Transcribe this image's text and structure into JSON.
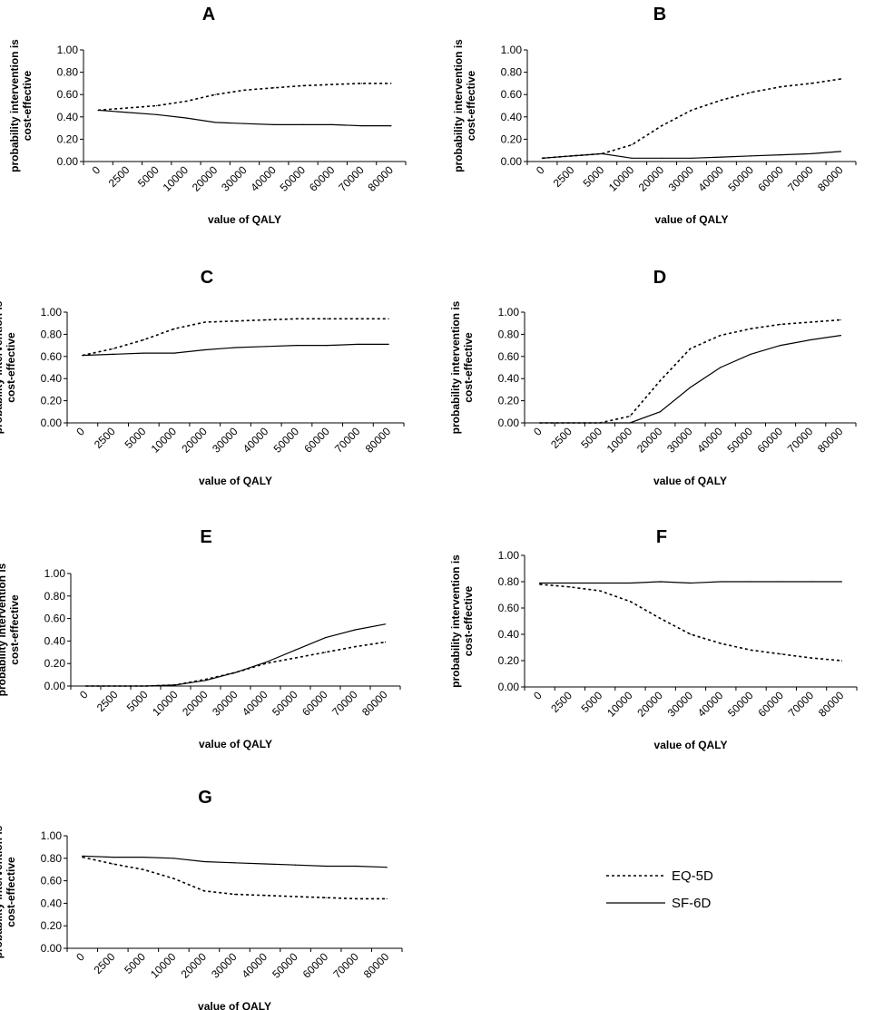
{
  "chart_data": [
    {
      "type": "line",
      "title": "A",
      "xlabel": "value of QALY",
      "ylabel": [
        "probability intervention is",
        "cost-effective"
      ],
      "categories": [
        "0",
        "2500",
        "5000",
        "10000",
        "20000",
        "30000",
        "40000",
        "50000",
        "60000",
        "70000",
        "80000"
      ],
      "ylim": [
        0,
        1
      ],
      "yticks": [
        "0.00",
        "0.20",
        "0.40",
        "0.60",
        "0.80",
        "1.00"
      ],
      "grid": false,
      "series": [
        {
          "name": "EQ-5D",
          "style": "dotted",
          "values": [
            0.46,
            0.48,
            0.5,
            0.54,
            0.6,
            0.64,
            0.66,
            0.68,
            0.69,
            0.7,
            0.7
          ]
        },
        {
          "name": "SF-6D",
          "style": "solid",
          "values": [
            0.46,
            0.44,
            0.42,
            0.39,
            0.35,
            0.34,
            0.33,
            0.33,
            0.33,
            0.32,
            0.32
          ]
        }
      ]
    },
    {
      "type": "line",
      "title": "B",
      "xlabel": "value of QALY",
      "ylabel": [
        "probability intervention is",
        "cost-effective"
      ],
      "categories": [
        "0",
        "2500",
        "5000",
        "10000",
        "20000",
        "30000",
        "40000",
        "50000",
        "60000",
        "70000",
        "80000"
      ],
      "ylim": [
        0,
        1
      ],
      "yticks": [
        "0.00",
        "0.20",
        "0.40",
        "0.60",
        "0.80",
        "1.00"
      ],
      "grid": false,
      "series": [
        {
          "name": "EQ-5D",
          "style": "dotted",
          "values": [
            0.03,
            0.05,
            0.07,
            0.15,
            0.32,
            0.46,
            0.55,
            0.62,
            0.67,
            0.7,
            0.74
          ]
        },
        {
          "name": "SF-6D",
          "style": "solid",
          "values": [
            0.03,
            0.05,
            0.07,
            0.03,
            0.03,
            0.03,
            0.04,
            0.05,
            0.06,
            0.07,
            0.09
          ]
        }
      ]
    },
    {
      "type": "line",
      "title": "C",
      "xlabel": "value of QALY",
      "ylabel": [
        "probability intervention is",
        "cost-effective"
      ],
      "categories": [
        "0",
        "2500",
        "5000",
        "10000",
        "20000",
        "30000",
        "40000",
        "50000",
        "60000",
        "70000",
        "80000"
      ],
      "ylim": [
        0,
        1
      ],
      "yticks": [
        "0.00",
        "0.20",
        "0.40",
        "0.60",
        "0.80",
        "1.00"
      ],
      "grid": false,
      "series": [
        {
          "name": "EQ-5D",
          "style": "dotted",
          "values": [
            0.61,
            0.67,
            0.75,
            0.85,
            0.91,
            0.92,
            0.93,
            0.94,
            0.94,
            0.94,
            0.94
          ]
        },
        {
          "name": "SF-6D",
          "style": "solid",
          "values": [
            0.61,
            0.62,
            0.63,
            0.63,
            0.66,
            0.68,
            0.69,
            0.7,
            0.7,
            0.71,
            0.71
          ]
        }
      ]
    },
    {
      "type": "line",
      "title": "D",
      "xlabel": "value of QALY",
      "ylabel": [
        "probability intervention is",
        "cost-effective"
      ],
      "categories": [
        "0",
        "2500",
        "5000",
        "10000",
        "20000",
        "30000",
        "40000",
        "50000",
        "60000",
        "70000",
        "80000"
      ],
      "ylim": [
        0,
        1
      ],
      "yticks": [
        "0.00",
        "0.20",
        "0.40",
        "0.60",
        "0.80",
        "1.00"
      ],
      "grid": false,
      "series": [
        {
          "name": "EQ-5D",
          "style": "dotted",
          "values": [
            0.0,
            0.0,
            0.0,
            0.06,
            0.38,
            0.67,
            0.79,
            0.85,
            0.89,
            0.91,
            0.93
          ]
        },
        {
          "name": "SF-6D",
          "style": "solid",
          "values": [
            0.0,
            0.0,
            0.0,
            0.0,
            0.1,
            0.32,
            0.5,
            0.62,
            0.7,
            0.75,
            0.79
          ]
        }
      ]
    },
    {
      "type": "line",
      "title": "E",
      "xlabel": "value of QALY",
      "ylabel": [
        "probability intervention is",
        "cost-effective"
      ],
      "categories": [
        "0",
        "2500",
        "5000",
        "10000",
        "20000",
        "30000",
        "40000",
        "50000",
        "60000",
        "70000",
        "80000"
      ],
      "ylim": [
        0,
        1
      ],
      "yticks": [
        "0.00",
        "0.20",
        "0.40",
        "0.60",
        "0.80",
        "1.00"
      ],
      "grid": false,
      "series": [
        {
          "name": "EQ-5D",
          "style": "dotted",
          "values": [
            0.0,
            0.0,
            0.0,
            0.01,
            0.06,
            0.12,
            0.2,
            0.25,
            0.3,
            0.35,
            0.39
          ]
        },
        {
          "name": "SF-6D",
          "style": "solid",
          "values": [
            0.0,
            0.0,
            0.0,
            0.01,
            0.05,
            0.12,
            0.21,
            0.32,
            0.43,
            0.5,
            0.55
          ]
        }
      ]
    },
    {
      "type": "line",
      "title": "F",
      "xlabel": "value of QALY",
      "ylabel": [
        "probability intervention is",
        "cost-effective"
      ],
      "categories": [
        "0",
        "2500",
        "5000",
        "10000",
        "20000",
        "30000",
        "40000",
        "50000",
        "60000",
        "70000",
        "80000"
      ],
      "ylim": [
        0,
        1
      ],
      "yticks": [
        "0.00",
        "0.20",
        "0.40",
        "0.60",
        "0.80",
        "1.00"
      ],
      "grid": false,
      "series": [
        {
          "name": "EQ-5D",
          "style": "dotted",
          "values": [
            0.78,
            0.76,
            0.73,
            0.65,
            0.52,
            0.4,
            0.33,
            0.28,
            0.25,
            0.22,
            0.2
          ]
        },
        {
          "name": "SF-6D",
          "style": "solid",
          "values": [
            0.79,
            0.79,
            0.79,
            0.79,
            0.8,
            0.79,
            0.8,
            0.8,
            0.8,
            0.8,
            0.8
          ]
        }
      ]
    },
    {
      "type": "line",
      "title": "G",
      "xlabel": "value of QALY",
      "ylabel": [
        "probability intervention is",
        "cost-effective"
      ],
      "categories": [
        "0",
        "2500",
        "5000",
        "10000",
        "20000",
        "30000",
        "40000",
        "50000",
        "60000",
        "70000",
        "80000"
      ],
      "ylim": [
        0,
        1
      ],
      "yticks": [
        "0.00",
        "0.20",
        "0.40",
        "0.60",
        "0.80",
        "1.00"
      ],
      "grid": false,
      "series": [
        {
          "name": "EQ-5D",
          "style": "dotted",
          "values": [
            0.81,
            0.75,
            0.7,
            0.62,
            0.51,
            0.48,
            0.47,
            0.46,
            0.45,
            0.44,
            0.44
          ]
        },
        {
          "name": "SF-6D",
          "style": "solid",
          "values": [
            0.82,
            0.81,
            0.81,
            0.8,
            0.77,
            0.76,
            0.75,
            0.74,
            0.73,
            0.73,
            0.72
          ]
        }
      ]
    }
  ],
  "legend": {
    "items": [
      {
        "label": "EQ-5D",
        "style": "dotted"
      },
      {
        "label": "SF-6D",
        "style": "solid"
      }
    ]
  }
}
